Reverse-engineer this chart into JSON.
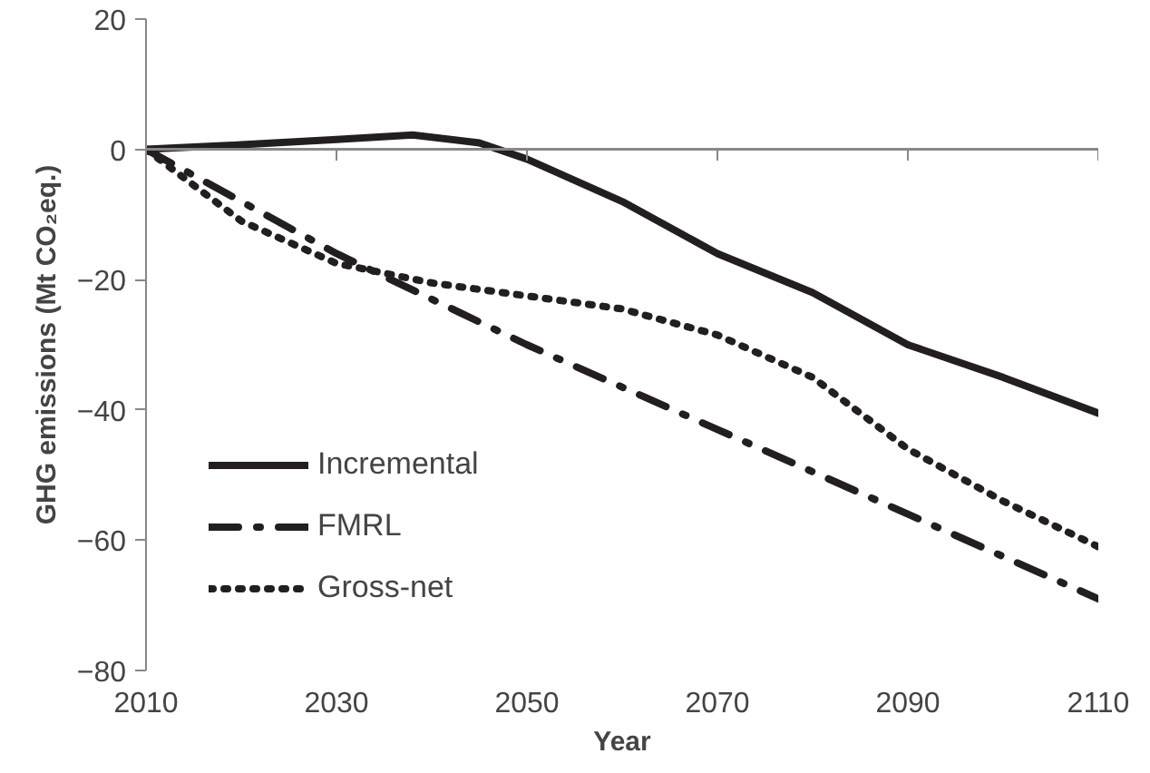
{
  "chart_data": {
    "type": "line",
    "xlabel": "Year",
    "ylabel": "GHG emissions (Mt CO₂eq.)",
    "xlim": [
      2010,
      2110
    ],
    "xticks": [
      2010,
      2030,
      2050,
      2070,
      2090,
      2110
    ],
    "ylim": [
      -80,
      20
    ],
    "yticks": [
      -80,
      -60,
      -40,
      -20,
      0,
      20
    ],
    "legend": "bottom left",
    "marker": "none",
    "ref_lines": [
      {
        "axis": "y",
        "value": 0,
        "color": "#888888",
        "line_style": "solid"
      }
    ],
    "series": [
      {
        "name": "Incremental",
        "color": "#231f20",
        "line_style": "solid",
        "x": [
          2010,
          2020,
          2030,
          2038,
          2045,
          2050,
          2060,
          2070,
          2080,
          2090,
          2100,
          2110
        ],
        "values": [
          0,
          0.7,
          1.5,
          2.2,
          1,
          -1.5,
          -8,
          -16,
          -22,
          -30,
          -35,
          -40.5
        ]
      },
      {
        "name": "FMRL",
        "color": "#231f20",
        "line_style": "dashdot",
        "x": [
          2010,
          2030,
          2050,
          2070,
          2090,
          2110
        ],
        "values": [
          0,
          -16,
          -30,
          -43,
          -56,
          -69
        ]
      },
      {
        "name": "Gross-net",
        "color": "#231f20",
        "line_style": "dotted",
        "x": [
          2010,
          2020,
          2030,
          2040,
          2050,
          2060,
          2070,
          2080,
          2090,
          2100,
          2110
        ],
        "values": [
          0,
          -11,
          -17.5,
          -20.5,
          -22.5,
          -24.5,
          -28.5,
          -35,
          -46,
          -54,
          -61
        ]
      }
    ]
  }
}
